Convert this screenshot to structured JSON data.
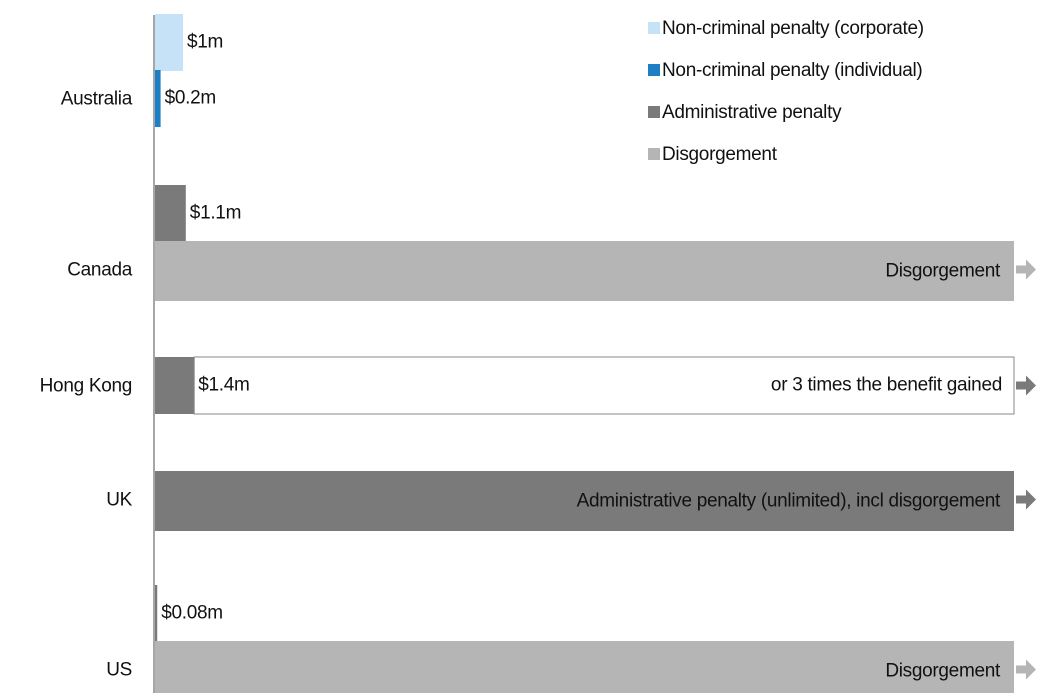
{
  "chart_data": {
    "type": "bar",
    "orientation": "horizontal",
    "categories": [
      "Australia",
      "Canada",
      "Hong Kong",
      "UK",
      "US"
    ],
    "series": [
      {
        "name": "Non-criminal penalty (corporate)",
        "color": "#c6e2f6",
        "values": [
          1,
          null,
          null,
          null,
          null
        ],
        "value_labels": [
          "$1m",
          null,
          null,
          null,
          null
        ]
      },
      {
        "name": "Non-criminal penalty (individual)",
        "color": "#1f7fc4",
        "values": [
          0.2,
          null,
          null,
          null,
          null
        ],
        "value_labels": [
          "$0.2m",
          null,
          null,
          null,
          null
        ]
      },
      {
        "name": "Administrative penalty",
        "color": "#7a7a7a",
        "values": [
          null,
          1.1,
          1.4,
          null,
          0.08
        ],
        "value_labels": [
          null,
          "$1.1m",
          "$1.4m",
          null,
          "$0.08m"
        ],
        "open_ended": [
          null,
          null,
          null,
          "Administrative penalty (unlimited), incl disgorgement",
          null
        ]
      },
      {
        "name": "Disgorgement",
        "color": "#b5b5b5",
        "values": [
          null,
          null,
          null,
          null,
          null
        ],
        "open_ended": [
          null,
          "Disgorgement",
          null,
          null,
          "Disgorgement"
        ]
      }
    ],
    "alternatives": [
      null,
      null,
      "or 3 times the benefit gained",
      null,
      null
    ],
    "legend": "top-right"
  }
}
